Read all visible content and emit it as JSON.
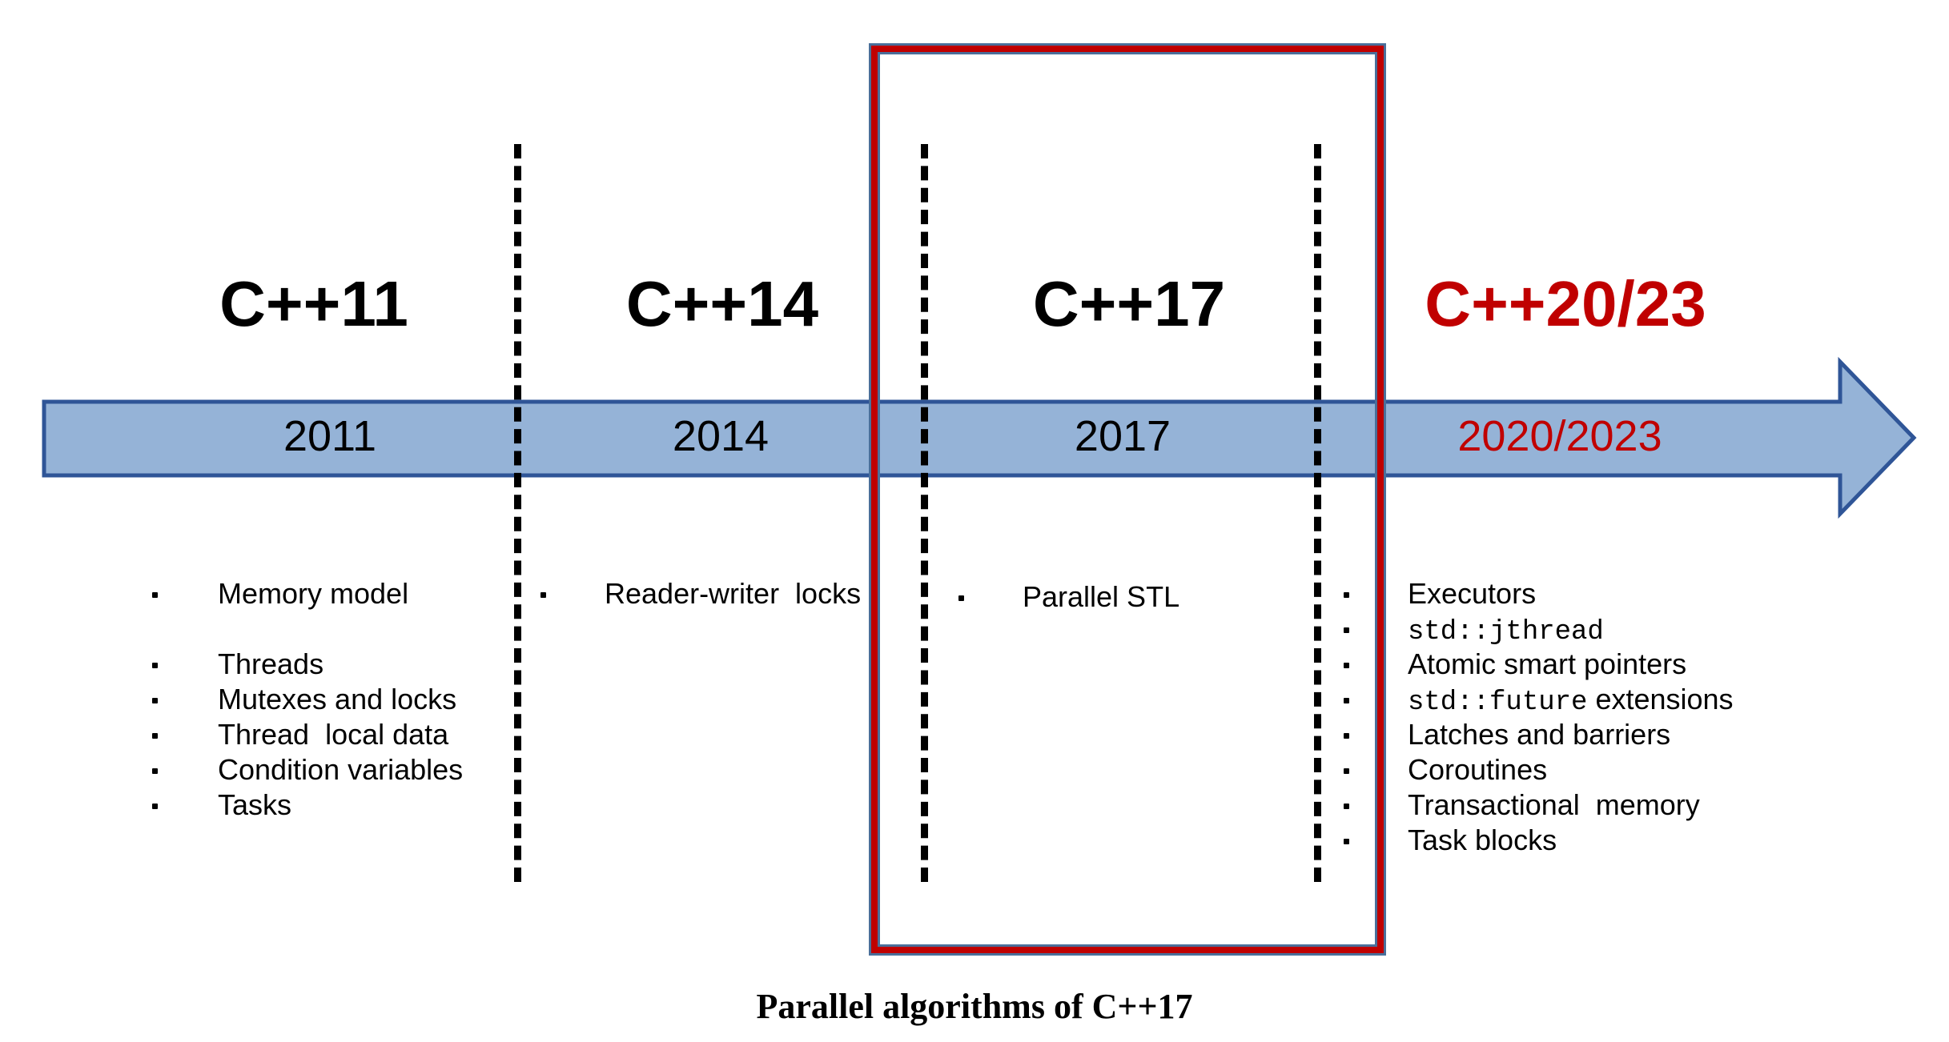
{
  "colors": {
    "arrow_fill": "#95b3d7",
    "arrow_stroke": "#2f5597",
    "highlight": "#c00000",
    "text": "#000000"
  },
  "eras": [
    {
      "title": "C++11",
      "year": "2011",
      "color": "#000000"
    },
    {
      "title": "C++14",
      "year": "2014",
      "color": "#000000"
    },
    {
      "title": "C++17",
      "year": "2017",
      "color": "#000000"
    },
    {
      "title": "C++20/23",
      "year": "2020/2023",
      "color": "#c00000"
    }
  ],
  "features": {
    "cpp11": [
      "Memory model",
      "Threads",
      "Mutexes and locks",
      "Thread  local data",
      "Condition variables",
      "Tasks"
    ],
    "cpp14": [
      "Reader-writer  locks"
    ],
    "cpp17": [
      "Parallel STL"
    ],
    "cpp20": [
      "Executors",
      "std::jthread",
      "Atomic smart pointers",
      "std::future",
      " extensions",
      "Latches and barriers",
      "Coroutines",
      "Transactional  memory",
      "Task blocks"
    ]
  },
  "caption": "Parallel algorithms of C++17"
}
